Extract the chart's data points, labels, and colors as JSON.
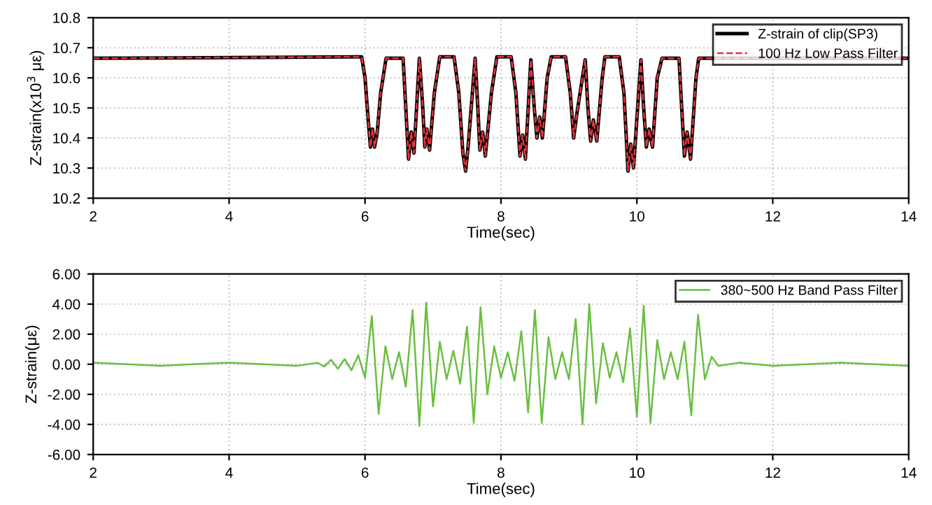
{
  "chart_data": [
    {
      "type": "line",
      "xlabel": "Time(sec)",
      "ylabel": "Z-strain(x10$^{3}$ με)",
      "xlim": [
        2,
        14
      ],
      "xticks": [
        2,
        4,
        6,
        8,
        10,
        12,
        14
      ],
      "ylim": [
        10.2,
        10.8
      ],
      "yticks": [
        10.2,
        10.3,
        10.4,
        10.5,
        10.6,
        10.7,
        10.8
      ],
      "grid": true,
      "legend": "top right",
      "x": [
        2,
        5.95,
        6.0,
        6.05,
        6.08,
        6.11,
        6.14,
        6.18,
        6.23,
        6.31,
        6.56,
        6.6,
        6.64,
        6.68,
        6.72,
        6.8,
        6.85,
        6.88,
        6.91,
        6.95,
        7.02,
        7.1,
        7.31,
        7.38,
        7.44,
        7.48,
        7.52,
        7.62,
        7.66,
        7.69,
        7.73,
        7.77,
        7.86,
        7.94,
        8.15,
        8.22,
        8.28,
        8.32,
        8.36,
        8.44,
        8.49,
        8.53,
        8.57,
        8.61,
        8.68,
        8.74,
        8.95,
        9.02,
        9.07,
        9.11,
        9.24,
        9.28,
        9.32,
        9.36,
        9.41,
        9.49,
        9.53,
        9.74,
        9.81,
        9.87,
        9.91,
        9.95,
        10.06,
        10.1,
        10.14,
        10.18,
        10.23,
        10.3,
        10.37,
        10.62,
        10.66,
        10.7,
        10.74,
        10.79,
        10.87,
        10.91,
        14
      ],
      "series": [
        {
          "name": "Z-strain of clip(SP3)",
          "color": "#000000",
          "line_style": "solid",
          "values": [
            10.665,
            10.67,
            10.6,
            10.45,
            10.37,
            10.43,
            10.37,
            10.42,
            10.55,
            10.665,
            10.665,
            10.5,
            10.33,
            10.42,
            10.35,
            10.665,
            10.5,
            10.37,
            10.43,
            10.36,
            10.55,
            10.67,
            10.67,
            10.55,
            10.35,
            10.29,
            10.38,
            10.665,
            10.5,
            10.36,
            10.42,
            10.34,
            10.55,
            10.67,
            10.67,
            10.55,
            10.34,
            10.41,
            10.33,
            10.66,
            10.5,
            10.4,
            10.47,
            10.4,
            10.6,
            10.67,
            10.67,
            10.55,
            10.4,
            10.47,
            10.66,
            10.5,
            10.39,
            10.46,
            10.39,
            10.6,
            10.67,
            10.67,
            10.55,
            10.29,
            10.38,
            10.3,
            10.66,
            10.5,
            10.37,
            10.43,
            10.37,
            10.6,
            10.665,
            10.665,
            10.5,
            10.34,
            10.42,
            10.33,
            10.6,
            10.665,
            10.665
          ]
        },
        {
          "name": "100 Hz Low Pass Filter",
          "color": "#e8323c",
          "line_style": "dashed",
          "values": [
            10.665,
            10.67,
            10.6,
            10.45,
            10.37,
            10.43,
            10.37,
            10.42,
            10.55,
            10.665,
            10.665,
            10.5,
            10.33,
            10.42,
            10.35,
            10.665,
            10.5,
            10.37,
            10.43,
            10.36,
            10.55,
            10.67,
            10.67,
            10.55,
            10.35,
            10.29,
            10.38,
            10.665,
            10.5,
            10.36,
            10.42,
            10.34,
            10.55,
            10.67,
            10.67,
            10.55,
            10.34,
            10.41,
            10.33,
            10.66,
            10.5,
            10.4,
            10.47,
            10.4,
            10.6,
            10.67,
            10.67,
            10.55,
            10.4,
            10.47,
            10.66,
            10.5,
            10.39,
            10.46,
            10.39,
            10.6,
            10.67,
            10.67,
            10.55,
            10.29,
            10.38,
            10.3,
            10.66,
            10.5,
            10.37,
            10.43,
            10.37,
            10.6,
            10.665,
            10.665,
            10.5,
            10.34,
            10.42,
            10.33,
            10.6,
            10.665,
            10.665
          ]
        }
      ]
    },
    {
      "type": "line",
      "xlabel": "Time(sec)",
      "ylabel": "Z-strain(με)",
      "xlim": [
        2,
        14
      ],
      "xticks": [
        2,
        4,
        6,
        8,
        10,
        12,
        14
      ],
      "ylim": [
        -6,
        6
      ],
      "yticks": [
        {
          "value": -6,
          "label": "-6.00"
        },
        {
          "value": -4,
          "label": "-4.00"
        },
        {
          "value": -2,
          "label": "-2.00"
        },
        {
          "value": 0,
          "label": "0.00"
        },
        {
          "value": 2,
          "label": "2.00"
        },
        {
          "value": 4,
          "label": "4.00"
        },
        {
          "value": 6,
          "label": "6.00"
        }
      ],
      "grid": true,
      "legend": "top right",
      "x": [
        2,
        3,
        4,
        5,
        5.3,
        5.4,
        5.5,
        5.6,
        5.7,
        5.8,
        5.9,
        6.0,
        6.1,
        6.2,
        6.3,
        6.4,
        6.5,
        6.6,
        6.7,
        6.8,
        6.9,
        7.0,
        7.1,
        7.2,
        7.3,
        7.4,
        7.5,
        7.6,
        7.7,
        7.8,
        7.9,
        8.0,
        8.1,
        8.2,
        8.3,
        8.4,
        8.5,
        8.6,
        8.7,
        8.8,
        8.9,
        9.0,
        9.1,
        9.2,
        9.3,
        9.4,
        9.5,
        9.6,
        9.7,
        9.8,
        9.9,
        10.0,
        10.1,
        10.2,
        10.3,
        10.4,
        10.5,
        10.6,
        10.7,
        10.8,
        10.9,
        11.0,
        11.1,
        11.2,
        11.5,
        12,
        13,
        14
      ],
      "series": [
        {
          "name": "380~500 Hz Band Pass Filter",
          "color": "#6abf40",
          "line_style": "solid",
          "values": [
            0.1,
            -0.1,
            0.1,
            -0.1,
            0.1,
            -0.15,
            0.3,
            -0.3,
            0.35,
            -0.4,
            0.6,
            -0.9,
            3.2,
            -3.3,
            1.2,
            -1.0,
            0.8,
            -1.5,
            3.6,
            -4.1,
            4.1,
            -2.8,
            1.5,
            -1.0,
            0.9,
            -1.3,
            2.5,
            -3.9,
            3.8,
            -2.0,
            1.2,
            -0.9,
            0.8,
            -1.1,
            2.2,
            -3.2,
            3.6,
            -3.9,
            1.8,
            -1.0,
            0.8,
            -1.0,
            3.0,
            -4.0,
            4.0,
            -2.6,
            1.4,
            -0.9,
            0.8,
            -1.2,
            2.4,
            -3.5,
            3.9,
            -3.9,
            1.6,
            -1.0,
            0.8,
            -1.0,
            1.5,
            -3.4,
            3.3,
            -1.0,
            0.5,
            -0.1,
            0.1,
            -0.1,
            0.1,
            -0.1
          ]
        }
      ]
    }
  ]
}
